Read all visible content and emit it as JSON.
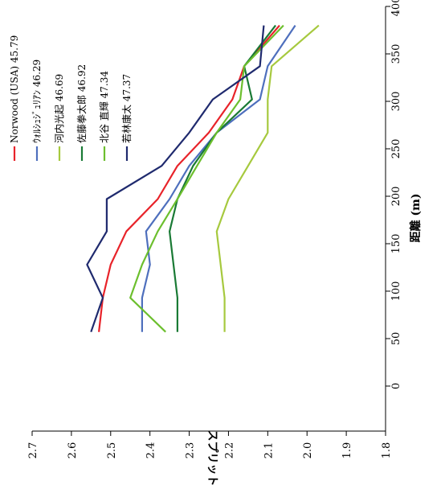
{
  "chart_data": {
    "type": "line",
    "title": "",
    "xlabel": "距離 (m)",
    "ylabel": "スプリット (m)",
    "xlim": [
      0,
      400
    ],
    "ylim": [
      1.8,
      2.7
    ],
    "x_ticks": [
      0,
      50,
      100,
      150,
      200,
      250,
      300,
      350,
      400
    ],
    "y_ticks": [
      "1.8",
      "1.9",
      "2.0",
      "2.1",
      "2.2",
      "2.3",
      "2.4",
      "2.5",
      "2.6",
      "2.7"
    ],
    "grid": false,
    "legend_position": "top",
    "rotated": true,
    "series": [
      {
        "name": "Norwood (USA) 45.79",
        "color": "#e8232a",
        "points": [
          [
            57,
            2.53
          ],
          [
            93,
            2.52
          ],
          [
            128,
            2.5
          ],
          [
            163,
            2.46
          ],
          [
            197,
            2.38
          ],
          [
            232,
            2.33
          ],
          [
            267,
            2.25
          ],
          [
            302,
            2.19
          ],
          [
            337,
            2.16
          ],
          [
            380,
            2.07
          ]
        ]
      },
      {
        "name": "ｳｫﾙｼｭｼﾞｭﾘｱﾝ 46.29",
        "color": "#4e6fbd",
        "points": [
          [
            57,
            2.42
          ],
          [
            93,
            2.42
          ],
          [
            128,
            2.4
          ],
          [
            163,
            2.41
          ],
          [
            197,
            2.35
          ],
          [
            232,
            2.3
          ],
          [
            267,
            2.23
          ],
          [
            302,
            2.12
          ],
          [
            337,
            2.1
          ],
          [
            380,
            2.03
          ]
        ]
      },
      {
        "name": "河内光起 46.69",
        "color": "#a6c93e",
        "points": [
          [
            57,
            2.21
          ],
          [
            93,
            2.21
          ],
          [
            128,
            2.22
          ],
          [
            163,
            2.23
          ],
          [
            197,
            2.2
          ],
          [
            232,
            2.15
          ],
          [
            267,
            2.1
          ],
          [
            302,
            2.1
          ],
          [
            337,
            2.09
          ],
          [
            380,
            1.97
          ]
        ]
      },
      {
        "name": "佐藤拳太郎 46.92",
        "color": "#1a7a35",
        "points": [
          [
            57,
            2.33
          ],
          [
            93,
            2.33
          ],
          [
            128,
            2.34
          ],
          [
            163,
            2.35
          ],
          [
            197,
            2.33
          ],
          [
            232,
            2.29
          ],
          [
            267,
            2.23
          ],
          [
            302,
            2.14
          ],
          [
            337,
            2.16
          ],
          [
            380,
            2.08
          ]
        ]
      },
      {
        "name": "北谷 直輝 47.34",
        "color": "#6cbf2e",
        "points": [
          [
            57,
            2.36
          ],
          [
            93,
            2.45
          ],
          [
            128,
            2.42
          ],
          [
            163,
            2.38
          ],
          [
            197,
            2.33
          ],
          [
            232,
            2.28
          ],
          [
            267,
            2.23
          ],
          [
            302,
            2.17
          ],
          [
            337,
            2.16
          ],
          [
            380,
            2.06
          ]
        ]
      },
      {
        "name": "若林康太 47.37",
        "color": "#1f2a6e",
        "points": [
          [
            57,
            2.55
          ],
          [
            93,
            2.52
          ],
          [
            128,
            2.56
          ],
          [
            163,
            2.51
          ],
          [
            197,
            2.51
          ],
          [
            232,
            2.37
          ],
          [
            267,
            2.3
          ],
          [
            302,
            2.24
          ],
          [
            337,
            2.12
          ],
          [
            380,
            2.11
          ]
        ]
      }
    ]
  }
}
